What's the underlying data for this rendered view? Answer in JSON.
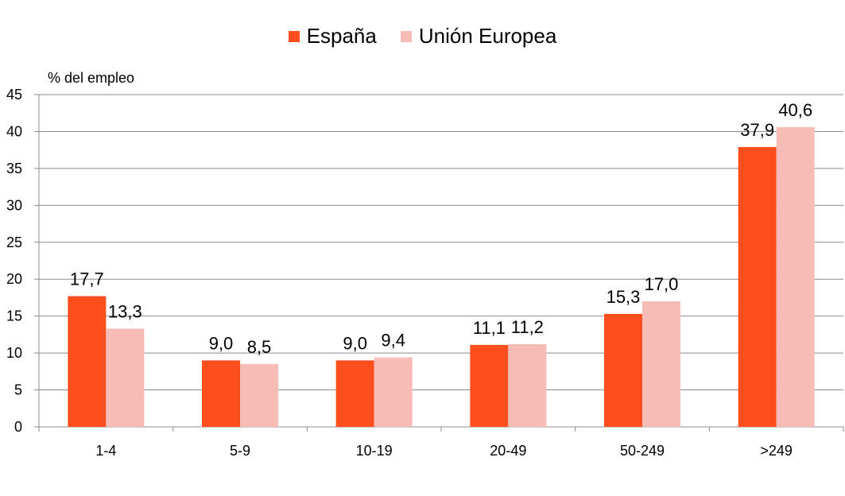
{
  "chart_data": {
    "type": "bar",
    "ylabel": "% del empleo",
    "xlabel": "",
    "ylim": [
      0,
      45
    ],
    "yticks": [
      0,
      5,
      10,
      15,
      20,
      25,
      30,
      35,
      40,
      45
    ],
    "categories": [
      "1-4",
      "5-9",
      "10-19",
      "20-49",
      "50-249",
      ">249"
    ],
    "series": [
      {
        "name": "España",
        "color": "#fc4f1d",
        "values": [
          17.7,
          9.0,
          9.0,
          11.1,
          15.3,
          37.9
        ],
        "labels": [
          "17,7",
          "9,0",
          "9,0",
          "11,1",
          "15,3",
          "37,9"
        ]
      },
      {
        "name": "Unión Europea",
        "color": "#f7bcb6",
        "values": [
          13.3,
          8.5,
          9.4,
          11.2,
          17.0,
          40.6
        ],
        "labels": [
          "13,3",
          "8,5",
          "9,4",
          "11,2",
          "17,0",
          "40,6"
        ]
      }
    ],
    "legend_position": "top-center",
    "grid": true
  }
}
